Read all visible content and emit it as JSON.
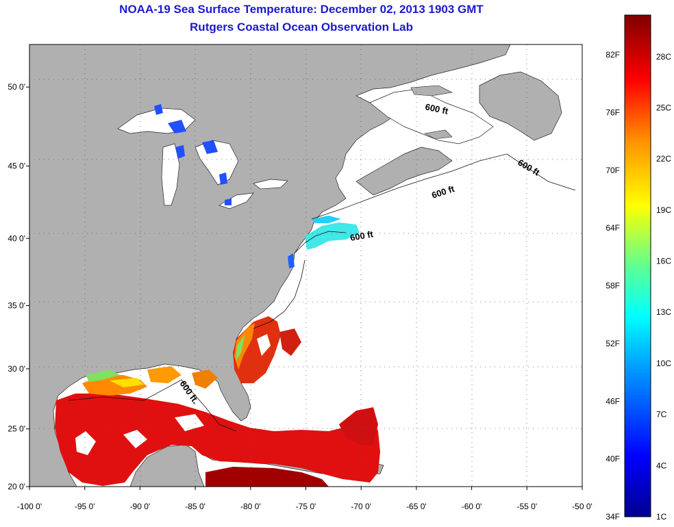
{
  "title": {
    "line1": "NOAA-19 Sea Surface Temperature:  December 02, 2013 1903 GMT",
    "line2": "Rutgers Coastal Ocean Observation Lab"
  },
  "axes": {
    "lon_ticks": [
      {
        "value": -100,
        "label": "-100 0'"
      },
      {
        "value": -95,
        "label": "-95 0'"
      },
      {
        "value": -90,
        "label": "-90 0'"
      },
      {
        "value": -85,
        "label": "-85 0'"
      },
      {
        "value": -80,
        "label": "-80 0'"
      },
      {
        "value": -75,
        "label": "-75 0'"
      },
      {
        "value": -70,
        "label": "-70 0'"
      },
      {
        "value": -65,
        "label": "-65 0'"
      },
      {
        "value": -60,
        "label": "-60 0'"
      },
      {
        "value": -55,
        "label": "-55 0'"
      },
      {
        "value": -50,
        "label": "-50 0'"
      }
    ],
    "lat_ticks": [
      {
        "value": 20,
        "label": "20 0'"
      },
      {
        "value": 25,
        "label": "25 0'"
      },
      {
        "value": 30,
        "label": "30 0'"
      },
      {
        "value": 35,
        "label": "35 0'"
      },
      {
        "value": 40,
        "label": "40 0'"
      },
      {
        "value": 45,
        "label": "45 0'"
      },
      {
        "value": 50,
        "label": "50 0'"
      }
    ],
    "lon_range": [
      -100,
      -50
    ],
    "lat_range": [
      20,
      52.5
    ],
    "grid": "dotted"
  },
  "colorbar": {
    "fahrenheit": [
      "34F",
      "40F",
      "46F",
      "52F",
      "58F",
      "64F",
      "70F",
      "76F",
      "82F"
    ],
    "celsius": [
      "1C",
      "4C",
      "7C",
      "10C",
      "13C",
      "16C",
      "19C",
      "22C",
      "25C",
      "28C"
    ]
  },
  "contour_labels": [
    "600 ft",
    "600 ft",
    "600 ft",
    "600 ft",
    "600 ft."
  ],
  "colors": {
    "land": "#b0b0b0",
    "no_data": "#ffffff",
    "title": "#1a1acc"
  }
}
